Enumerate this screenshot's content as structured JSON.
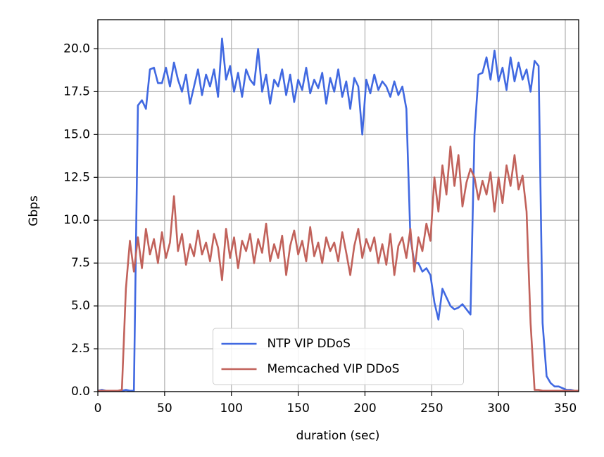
{
  "chart_data": {
    "type": "line",
    "x_label": "duration (sec)",
    "y_label": "Gbps",
    "x": [
      0,
      3,
      6,
      9,
      12,
      15,
      18,
      21,
      24,
      27,
      30,
      33,
      36,
      39,
      42,
      45,
      48,
      51,
      54,
      57,
      60,
      63,
      66,
      69,
      72,
      75,
      78,
      81,
      84,
      87,
      90,
      93,
      96,
      99,
      102,
      105,
      108,
      111,
      114,
      117,
      120,
      123,
      126,
      129,
      132,
      135,
      138,
      141,
      144,
      147,
      150,
      153,
      156,
      159,
      162,
      165,
      168,
      171,
      174,
      177,
      180,
      183,
      186,
      189,
      192,
      195,
      198,
      201,
      204,
      207,
      210,
      213,
      216,
      219,
      222,
      225,
      228,
      231,
      234,
      237,
      240,
      243,
      246,
      249,
      252,
      255,
      258,
      261,
      264,
      267,
      270,
      273,
      276,
      279,
      282,
      285,
      288,
      291,
      294,
      297,
      300,
      303,
      306,
      309,
      312,
      315,
      318,
      321,
      324,
      327,
      330,
      333,
      336,
      339,
      342,
      345,
      348,
      351,
      354,
      357,
      360
    ],
    "series": [
      {
        "name": "NTP VIP DDoS",
        "color": "#4169e1",
        "values": [
          0.05,
          0.1,
          0.05,
          0.05,
          0.05,
          0.05,
          0.05,
          0.1,
          0.05,
          0.05,
          16.7,
          17,
          16.5,
          18.8,
          18.9,
          18,
          18,
          18.9,
          17.8,
          19.2,
          18.2,
          17.5,
          18.5,
          16.8,
          17.8,
          18.8,
          17.3,
          18.5,
          17.8,
          18.8,
          17.2,
          20.6,
          18.2,
          19,
          17.5,
          18.6,
          17.2,
          18.8,
          18.2,
          17.9,
          20,
          17.5,
          18.5,
          16.8,
          18.2,
          17.8,
          18.8,
          17.3,
          18.5,
          16.9,
          18.2,
          17.6,
          18.9,
          17.4,
          18.2,
          17.7,
          18.6,
          16.8,
          18.3,
          17.5,
          18.8,
          17.2,
          18.1,
          16.5,
          18.3,
          17.8,
          15,
          18.2,
          17.4,
          18.5,
          17.6,
          18.1,
          17.8,
          17.2,
          18.1,
          17.3,
          17.8,
          16.5,
          9,
          7.5,
          7.5,
          7,
          7.2,
          6.8,
          5.2,
          4.2,
          6,
          5.5,
          5,
          4.8,
          4.9,
          5.1,
          4.8,
          4.5,
          15,
          18.5,
          18.6,
          19.5,
          18.2,
          19.9,
          18.1,
          18.9,
          17.6,
          19.5,
          18.1,
          19.2,
          18.2,
          18.8,
          17.5,
          19.3,
          19,
          4,
          0.9,
          0.5,
          0.3,
          0.3,
          0.2,
          0.1,
          0.1,
          0.05,
          0.05
        ]
      },
      {
        "name": "Memcached VIP DDoS",
        "color": "#c1625b",
        "values": [
          0.05,
          0.05,
          0.05,
          0.05,
          0.05,
          0.05,
          0.1,
          6,
          8.8,
          7,
          9,
          7.2,
          9.5,
          8,
          8.9,
          7.5,
          9.3,
          7.8,
          8.7,
          11.4,
          8.2,
          9.2,
          7.4,
          8.6,
          7.9,
          9.4,
          8,
          8.7,
          7.6,
          9.2,
          8.4,
          6.5,
          9.5,
          7.8,
          9,
          7.2,
          8.8,
          8.2,
          9.2,
          7.5,
          8.9,
          8.1,
          9.8,
          7.6,
          8.6,
          7.8,
          9.1,
          6.8,
          8.5,
          9.4,
          8,
          8.8,
          7.6,
          9.6,
          7.9,
          8.7,
          7.5,
          9,
          8.2,
          8.7,
          7.6,
          9.3,
          8.1,
          6.8,
          8.5,
          9.5,
          7.8,
          8.9,
          8.2,
          9,
          7.5,
          8.6,
          7.4,
          9.2,
          6.8,
          8.5,
          9,
          7.8,
          9.5,
          7,
          9,
          8.2,
          9.8,
          8.8,
          12.5,
          10.5,
          13.2,
          11.5,
          14.3,
          12,
          13.8,
          10.8,
          12.2,
          13,
          12.5,
          11.2,
          12.3,
          11.5,
          12.8,
          10.5,
          12.5,
          11,
          13.2,
          12,
          13.8,
          11.8,
          12.6,
          10.5,
          4,
          0.1,
          0.1,
          0.05,
          0.05,
          0.05,
          0.05,
          0.05,
          0.05,
          0.05,
          0.05,
          0.05,
          0.05
        ]
      }
    ],
    "xlim": [
      0,
      360
    ],
    "xticks": [
      0,
      50,
      100,
      150,
      200,
      250,
      300,
      350
    ],
    "ylim": [
      0,
      21.7
    ],
    "yticks": [
      {
        "value": 0,
        "label": "0.0"
      },
      {
        "value": 2.5,
        "label": "2.5"
      },
      {
        "value": 5,
        "label": "5.0"
      },
      {
        "value": 7.5,
        "label": "7.5"
      },
      {
        "value": 10,
        "label": "10.0"
      },
      {
        "value": 12.5,
        "label": "12.5"
      },
      {
        "value": 15,
        "label": "15.0"
      },
      {
        "value": 17.5,
        "label": "17.5"
      },
      {
        "value": 20,
        "label": "20.0"
      }
    ],
    "grid": true,
    "legend": "lower center"
  }
}
